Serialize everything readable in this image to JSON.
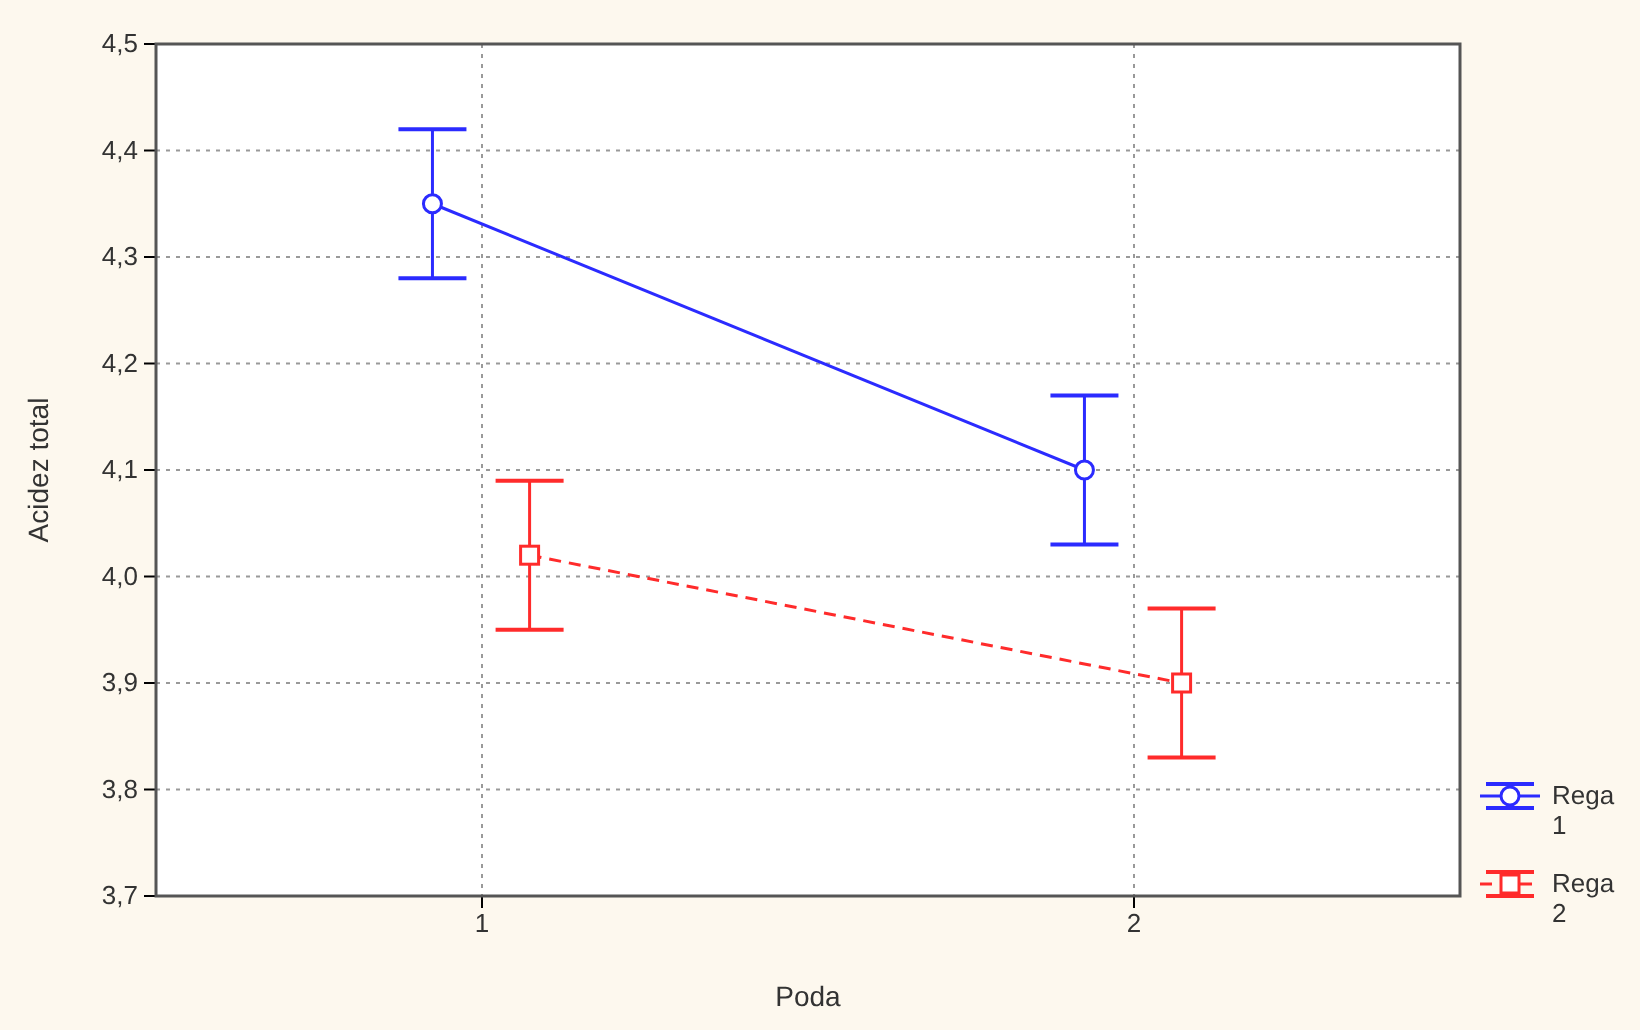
{
  "chart_data": {
    "type": "line",
    "xlabel": "Poda",
    "ylabel": "Acidez total",
    "xlim": [
      0.5,
      2.5
    ],
    "xticks": [
      1,
      2
    ],
    "ylim": [
      3.7,
      4.5
    ],
    "yticks": [
      {
        "value": 3.7,
        "label": "3,7"
      },
      {
        "value": 3.8,
        "label": "3,8"
      },
      {
        "value": 3.9,
        "label": "3,9"
      },
      {
        "value": 4.0,
        "label": "4,0"
      },
      {
        "value": 4.1,
        "label": "4,1"
      },
      {
        "value": 4.2,
        "label": "4,2"
      },
      {
        "value": 4.3,
        "label": "4,3"
      },
      {
        "value": 4.4,
        "label": "4,4"
      },
      {
        "value": 4.5,
        "label": "4,5"
      }
    ],
    "grid": true,
    "legend": "bottom right",
    "series": [
      {
        "name": "Rega 1",
        "color": "#2b2bff",
        "x": [
          0.924,
          1.924
        ],
        "values": [
          4.35,
          4.1
        ],
        "errors": [
          [
            4.28,
            4.42
          ],
          [
            4.03,
            4.17
          ]
        ],
        "marker": "circle",
        "line_style": "solid"
      },
      {
        "name": "Rega 2",
        "color": "#ff2b2b",
        "x": [
          1.073,
          2.073
        ],
        "values": [
          4.02,
          3.9
        ],
        "errors": [
          [
            3.95,
            4.09
          ],
          [
            3.83,
            3.97
          ]
        ],
        "marker": "square",
        "line_style": "dashed"
      }
    ]
  }
}
